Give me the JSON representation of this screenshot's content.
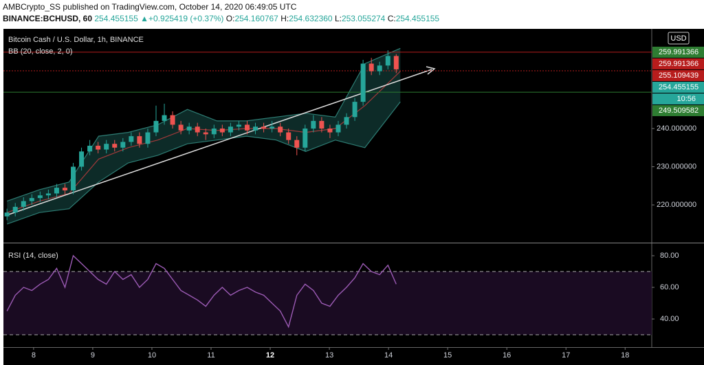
{
  "header": {
    "publisher": "AMBCrypto_SS",
    "published": "published on TradingView.com, October 14, 2020 06:49:05 UTC",
    "symbol": "BINANCE:BCHUSD, 60",
    "last": "254.455155",
    "arrow": "▲",
    "change": "+0.925419 (+0.37%)",
    "ohlc": [
      {
        "key": "O:",
        "value": "254.160767"
      },
      {
        "key": "H:",
        "value": "254.632360"
      },
      {
        "key": "L:",
        "value": "253.055274"
      },
      {
        "key": "C:",
        "value": "254.455155"
      }
    ]
  },
  "chart_data": [
    {
      "type": "candlestick",
      "title": "Bitcoin Cash / U.S. Dollar, 1h, BINANCE",
      "subtitle": "BB (20, close, 2, 0)",
      "currency": "USD",
      "up_color": "#26a69a",
      "down_color": "#ef5350",
      "x": [
        7.55,
        7.69,
        7.83,
        7.97,
        8.11,
        8.25,
        8.39,
        8.53,
        8.67,
        8.81,
        8.95,
        9.09,
        9.23,
        9.37,
        9.51,
        9.65,
        9.79,
        9.93,
        10.07,
        10.21,
        10.35,
        10.49,
        10.63,
        10.77,
        10.91,
        11.05,
        11.19,
        11.33,
        11.47,
        11.61,
        11.75,
        11.89,
        12.03,
        12.17,
        12.31,
        12.45,
        12.59,
        12.73,
        12.87,
        13.01,
        13.15,
        13.29,
        13.43,
        13.57,
        13.71,
        13.85,
        13.99,
        14.13
      ],
      "open": [
        217,
        218,
        219.5,
        221,
        221.8,
        222.5,
        223,
        224.5,
        223.8,
        230,
        234,
        235.5,
        234.5,
        236,
        235,
        236.5,
        238,
        236,
        239,
        242,
        243.5,
        241,
        239.5,
        240.5,
        239,
        238.5,
        240,
        239,
        240.5,
        241,
        239.5,
        240.5,
        240,
        240.5,
        239,
        237,
        235,
        240,
        242,
        240,
        239,
        241,
        243,
        247,
        257,
        255,
        256.5,
        259
      ],
      "high": [
        219,
        220.5,
        222,
        222.8,
        223.5,
        224,
        225.5,
        225.5,
        231,
        235,
        237,
        236.5,
        237,
        237,
        237.5,
        239,
        239,
        240,
        246,
        246.5,
        244.5,
        242,
        241.5,
        241.5,
        240,
        241,
        241,
        241.5,
        242,
        242,
        241.5,
        241.5,
        242,
        241.5,
        240,
        238,
        241,
        243.5,
        243,
        241,
        242,
        244,
        248,
        258,
        258.5,
        257.5,
        260.5,
        259.5
      ],
      "low": [
        216,
        217,
        218.5,
        220,
        220.8,
        221.5,
        222,
        222.8,
        222.8,
        229,
        233,
        233.5,
        233.5,
        234,
        234,
        235.5,
        235,
        235,
        238,
        241,
        240,
        238.5,
        238.5,
        238,
        237,
        237.5,
        238,
        238,
        239.5,
        238.5,
        238.5,
        239,
        239,
        238,
        236,
        233,
        234,
        239,
        239,
        237.5,
        238,
        240,
        242,
        246,
        254,
        254,
        255.5,
        254.5
      ],
      "close": [
        218,
        219.5,
        221,
        221.8,
        222.5,
        223,
        224.5,
        223.8,
        230,
        234,
        235.5,
        234.5,
        236,
        235,
        236.5,
        238,
        236,
        239,
        242,
        243.5,
        241,
        239.5,
        240.5,
        239,
        238.5,
        240,
        239,
        240.5,
        241,
        239.5,
        240.5,
        240,
        240.5,
        239,
        237,
        235,
        240,
        242,
        240,
        239,
        241,
        243,
        247,
        257,
        255,
        256.5,
        259,
        255.5
      ],
      "bb": {
        "color": "#2e7d74",
        "mid_color": "#a33a3a",
        "fill": "#0d2b28",
        "x": [
          7.55,
          8.1,
          8.6,
          9.1,
          9.6,
          10.1,
          10.6,
          11.1,
          11.6,
          12.1,
          12.6,
          13.1,
          13.6,
          14.2
        ],
        "upper": [
          221,
          224,
          226,
          238,
          239,
          241,
          245,
          242,
          242,
          243,
          244,
          243,
          257,
          261
        ],
        "middle": [
          218,
          221,
          223,
          232,
          235,
          237,
          240,
          239.5,
          240,
          240,
          239,
          240,
          246,
          255
        ],
        "lower": [
          215,
          218,
          219,
          226,
          231,
          233,
          236,
          237,
          238,
          237,
          234,
          237,
          235,
          247
        ]
      },
      "price_labels": [
        {
          "value": 259.991366,
          "label": "259.991366",
          "color": "#2e7d32"
        },
        {
          "value": 259.991366,
          "label": "259.991366",
          "color": "#b71c1c",
          "line": "solid"
        },
        {
          "value": 255.109439,
          "label": "255.109439",
          "color": "#b71c1c",
          "line": "dotted"
        },
        {
          "value": 254.455155,
          "label": "254.455155",
          "color": "#26a69a"
        },
        {
          "label": "10:56",
          "color": "#26a69a"
        },
        {
          "value": 249.509582,
          "label": "249.509582",
          "color": "#2e7d32",
          "line": "solid"
        }
      ],
      "xlim": [
        7.49,
        18.45
      ],
      "xticks": [
        8,
        9,
        10,
        11,
        12,
        13,
        14,
        15,
        16,
        17,
        18
      ],
      "xtick_bold": [
        12
      ],
      "ylim": [
        210.3,
        266.1
      ],
      "yticks": [
        {
          "value": 220,
          "label": "220.000000"
        },
        {
          "value": 230,
          "label": "230.000000"
        },
        {
          "value": 240,
          "label": "240.000000"
        }
      ]
    },
    {
      "type": "line",
      "title": "RSI (14, close)",
      "color": "#9c5bb5",
      "band_fill": "#1a0b22",
      "bands": [
        30,
        70
      ],
      "x": [
        7.55,
        7.69,
        7.83,
        7.97,
        8.11,
        8.25,
        8.39,
        8.53,
        8.67,
        8.81,
        8.95,
        9.09,
        9.23,
        9.37,
        9.51,
        9.65,
        9.79,
        9.93,
        10.07,
        10.21,
        10.35,
        10.49,
        10.63,
        10.77,
        10.91,
        11.05,
        11.19,
        11.33,
        11.47,
        11.61,
        11.75,
        11.89,
        12.03,
        12.17,
        12.31,
        12.45,
        12.59,
        12.73,
        12.87,
        13.01,
        13.15,
        13.29,
        13.43,
        13.57,
        13.71,
        13.85,
        13.99,
        14.13
      ],
      "values": [
        45,
        55,
        60,
        58,
        62,
        65,
        72,
        60,
        80,
        75,
        70,
        65,
        62,
        70,
        65,
        68,
        60,
        65,
        75,
        72,
        65,
        58,
        55,
        52,
        48,
        55,
        60,
        55,
        58,
        60,
        57,
        55,
        50,
        45,
        35,
        55,
        62,
        58,
        50,
        48,
        55,
        60,
        66,
        75,
        70,
        68,
        74,
        62
      ],
      "xlim": [
        7.49,
        18.45
      ],
      "ylim": [
        22.2,
        87.4
      ],
      "yticks": [
        {
          "value": 40,
          "label": "40.00"
        },
        {
          "value": 60,
          "label": "60.00"
        },
        {
          "value": 80,
          "label": "80.00"
        }
      ]
    }
  ]
}
